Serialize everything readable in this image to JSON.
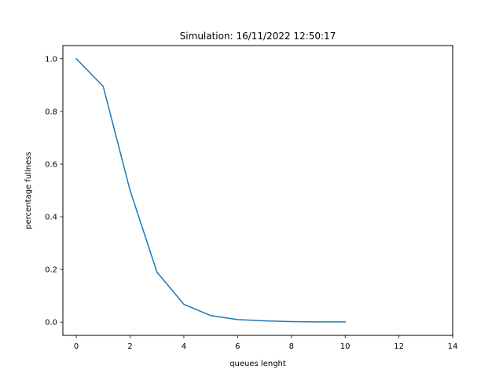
{
  "chart_data": {
    "type": "line",
    "title": "Simulation: 16/11/2022 12:50:17",
    "xlabel": "queues lenght",
    "ylabel": "percentage fullness",
    "xlim": [
      -0.5,
      14
    ],
    "ylim": [
      -0.05,
      1.05
    ],
    "xticks": [
      0,
      2,
      4,
      6,
      8,
      10,
      12,
      14
    ],
    "yticks": [
      0.0,
      0.2,
      0.4,
      0.6,
      0.8,
      1.0
    ],
    "xtick_labels": [
      "0",
      "2",
      "4",
      "6",
      "8",
      "10",
      "12",
      "14"
    ],
    "ytick_labels": [
      "0.0",
      "0.2",
      "0.4",
      "0.6",
      "0.8",
      "1.0"
    ],
    "grid": false,
    "series": [
      {
        "color": "#1f77b4",
        "x": [
          0,
          1,
          2,
          3,
          4,
          5,
          6,
          7,
          8,
          9,
          10
        ],
        "y": [
          1.0,
          0.895,
          0.5,
          0.19,
          0.068,
          0.025,
          0.01,
          0.005,
          0.002,
          0.001,
          0.001
        ]
      }
    ]
  }
}
